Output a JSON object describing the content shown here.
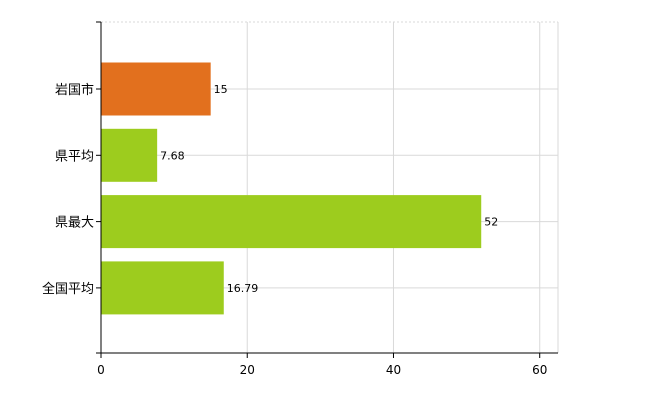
{
  "chart_data": {
    "type": "bar",
    "orientation": "horizontal",
    "title": "",
    "xlabel": "",
    "ylabel": "",
    "categories": [
      "岩国市",
      "県平均",
      "県最大",
      "全国平均"
    ],
    "values": [
      15,
      7.68,
      52,
      16.79
    ],
    "data_labels": [
      "15",
      "7.68",
      "52",
      "16.79"
    ],
    "xlim": [
      0,
      62.5
    ],
    "x_ticks": [
      0,
      20,
      40,
      60
    ],
    "x_tick_labels": [
      "0",
      "20",
      "40",
      "60"
    ],
    "grid": true,
    "legend": "none",
    "colors": {
      "highlight": "#e2701e",
      "default": "#9dcc1e",
      "grid": "#d9d9d9",
      "axis": "#000000"
    },
    "highlight_index": 0
  }
}
